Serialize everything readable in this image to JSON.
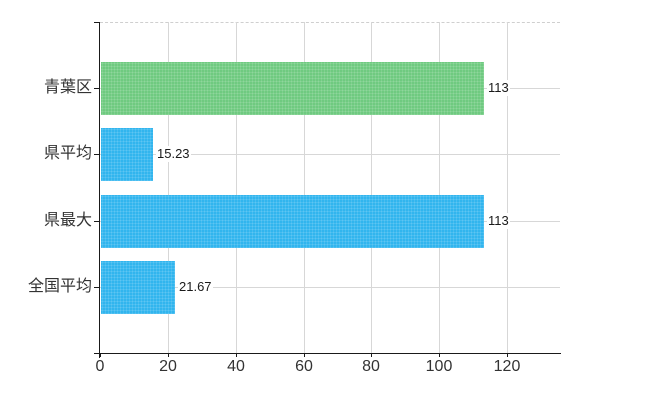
{
  "chart_data": {
    "type": "bar",
    "orientation": "horizontal",
    "categories": [
      "青葉区",
      "県平均",
      "県最大",
      "全国平均"
    ],
    "values": [
      113,
      15.23,
      113,
      21.67
    ],
    "value_labels": [
      "113",
      "15.23",
      "113",
      "21.67"
    ],
    "bar_colors": [
      "#6fca80",
      "#31b5ee",
      "#31b5ee",
      "#31b5ee"
    ],
    "x_ticks": [
      0,
      20,
      40,
      60,
      80,
      100,
      120
    ],
    "x_tick_labels": [
      "0",
      "20",
      "40",
      "60",
      "80",
      "100",
      "120"
    ],
    "xlim": [
      0,
      135.6
    ],
    "grid": true,
    "legend": false,
    "colors": {
      "background": "#ffffff",
      "grid": "#d7d7d7",
      "top_border": "#cfcfcf",
      "axis": "#1a1a1a",
      "text": "#333333",
      "value_text": "#1a1a1a"
    }
  }
}
